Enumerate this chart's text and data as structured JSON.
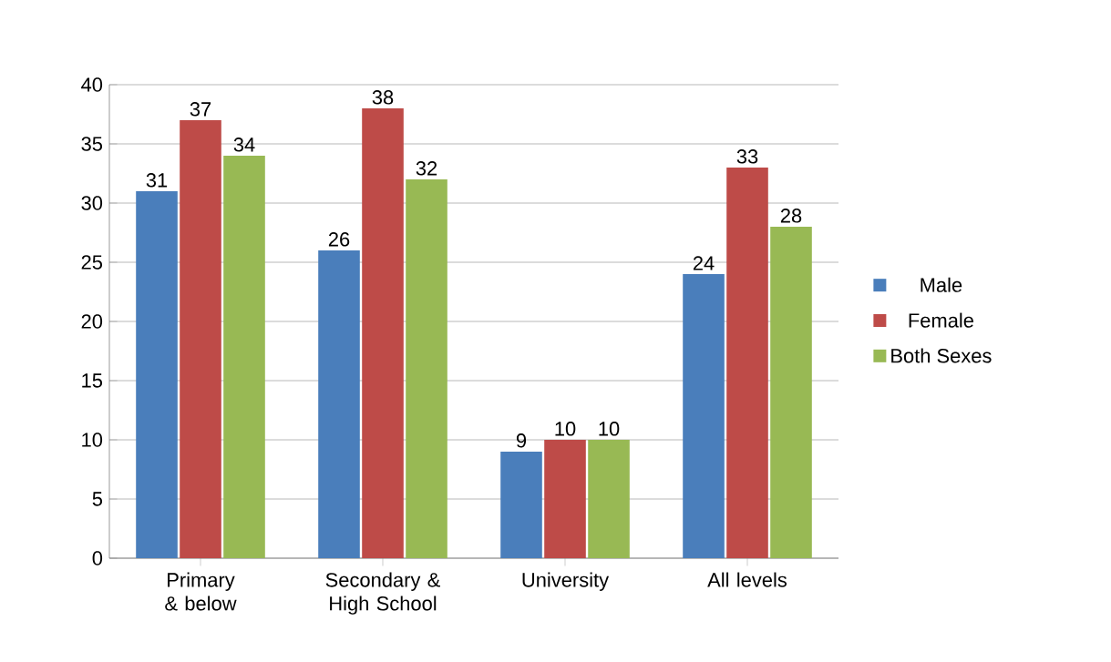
{
  "chart_data": {
    "type": "bar",
    "categories": [
      "Primary & below",
      "Secondary & High School",
      "University",
      "All levels"
    ],
    "series": [
      {
        "name": "Male",
        "color": "#4a7ebb",
        "values": [
          31,
          26,
          9,
          24
        ]
      },
      {
        "name": "Female",
        "color": "#be4b48",
        "values": [
          37,
          38,
          10,
          33
        ]
      },
      {
        "name": "Both Sexes",
        "color": "#98b954",
        "values": [
          34,
          32,
          10,
          28
        ]
      }
    ],
    "ylim": [
      0,
      40
    ],
    "yticks": [
      0,
      5,
      10,
      15,
      20,
      25,
      30,
      35,
      40
    ],
    "grid": "y",
    "legend": "right",
    "data_labels": true
  }
}
